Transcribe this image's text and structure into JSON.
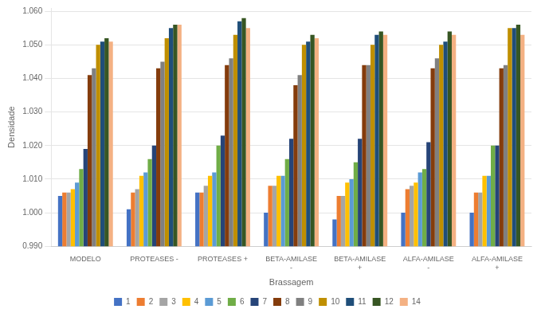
{
  "chart_data": {
    "type": "bar",
    "xlabel": "Brassagem",
    "ylabel": "Densidade",
    "categories": [
      "MODELO",
      "PROTEASES -",
      "PROTEASES +",
      "BETA-AMILASE\n-",
      "BETA-AMILASE\n+",
      "ALFA-AMILASE\n-",
      "ALFA-AMILASE\n+"
    ],
    "series": [
      {
        "name": "1",
        "color": "#4472C4",
        "values": [
          1.005,
          1.001,
          1.006,
          1.0,
          0.998,
          1.0,
          1.0
        ]
      },
      {
        "name": "2",
        "color": "#ED7D31",
        "values": [
          1.006,
          1.006,
          1.006,
          1.008,
          1.005,
          1.007,
          1.006
        ]
      },
      {
        "name": "3",
        "color": "#A5A5A5",
        "values": [
          1.006,
          1.007,
          1.008,
          1.008,
          1.005,
          1.008,
          1.006
        ]
      },
      {
        "name": "4",
        "color": "#FFC000",
        "values": [
          1.007,
          1.011,
          1.011,
          1.011,
          1.009,
          1.009,
          1.011
        ]
      },
      {
        "name": "5",
        "color": "#5B9BD5",
        "values": [
          1.009,
          1.012,
          1.012,
          1.011,
          1.01,
          1.012,
          1.011
        ]
      },
      {
        "name": "6",
        "color": "#70AD47",
        "values": [
          1.013,
          1.016,
          1.02,
          1.016,
          1.015,
          1.013,
          1.02
        ]
      },
      {
        "name": "7",
        "color": "#264478",
        "values": [
          1.019,
          1.02,
          1.023,
          1.022,
          1.022,
          1.021,
          1.02
        ]
      },
      {
        "name": "8",
        "color": "#843C0C",
        "values": [
          1.041,
          1.043,
          1.044,
          1.038,
          1.044,
          1.043,
          1.043
        ]
      },
      {
        "name": "9",
        "color": "#808080",
        "values": [
          1.043,
          1.045,
          1.046,
          1.041,
          1.044,
          1.046,
          1.044
        ]
      },
      {
        "name": "10",
        "color": "#BF8F00",
        "values": [
          1.05,
          1.052,
          1.053,
          1.05,
          1.05,
          1.05,
          1.055
        ]
      },
      {
        "name": "11",
        "color": "#1F4E79",
        "values": [
          1.051,
          1.055,
          1.057,
          1.051,
          1.053,
          1.051,
          1.055
        ]
      },
      {
        "name": "12",
        "color": "#375623",
        "values": [
          1.052,
          1.056,
          1.058,
          1.053,
          1.054,
          1.054,
          1.056
        ]
      },
      {
        "name": "14",
        "color": "#F4B183",
        "values": [
          1.051,
          1.056,
          1.055,
          1.052,
          1.053,
          1.053,
          1.053
        ]
      }
    ],
    "ylim": [
      0.99,
      1.061
    ],
    "yticks": [
      {
        "value": 0.99,
        "label": "0.990"
      },
      {
        "value": 1.0,
        "label": "1.000"
      },
      {
        "value": 1.01,
        "label": "1.010"
      },
      {
        "value": 1.02,
        "label": "1.020"
      },
      {
        "value": 1.03,
        "label": "1.030"
      },
      {
        "value": 1.04,
        "label": "1.040"
      },
      {
        "value": 1.05,
        "label": "1.050"
      },
      {
        "value": 1.06,
        "label": "1.060"
      }
    ],
    "grid": true,
    "legend": "bottom"
  }
}
